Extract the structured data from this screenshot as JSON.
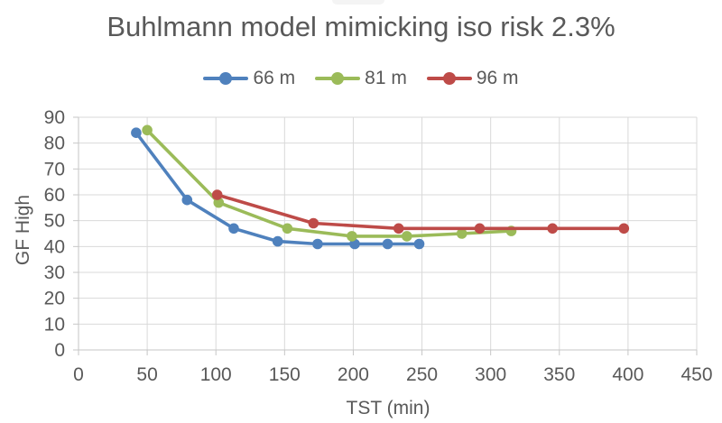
{
  "chart_data": {
    "type": "line",
    "title": "Buhlmann model mimicking iso risk 2.3%",
    "xlabel": "TST (min)",
    "ylabel": "GF High",
    "xlim": [
      0,
      450
    ],
    "ylim": [
      0,
      90
    ],
    "x_ticks": [
      0,
      50,
      100,
      150,
      200,
      250,
      300,
      350,
      400,
      450
    ],
    "y_ticks": [
      0,
      10,
      20,
      30,
      40,
      50,
      60,
      70,
      80,
      90
    ],
    "grid": true,
    "legend_position": "top-center",
    "series": [
      {
        "name": "66 m",
        "color": "#4F81BD",
        "points": [
          [
            42,
            84
          ],
          [
            79,
            58
          ],
          [
            113,
            47
          ],
          [
            145,
            42
          ],
          [
            174,
            41
          ],
          [
            201,
            41
          ],
          [
            225,
            41
          ],
          [
            248,
            41
          ]
        ]
      },
      {
        "name": "81 m",
        "color": "#9BBB59",
        "points": [
          [
            50,
            85
          ],
          [
            102,
            57
          ],
          [
            152,
            47
          ],
          [
            199,
            44
          ],
          [
            239,
            44
          ],
          [
            279,
            45
          ],
          [
            315,
            46
          ]
        ]
      },
      {
        "name": "96 m",
        "color": "#BE4B48",
        "points": [
          [
            101,
            60
          ],
          [
            171,
            49
          ],
          [
            233,
            47
          ],
          [
            292,
            47
          ],
          [
            345,
            47
          ],
          [
            397,
            47
          ]
        ]
      }
    ]
  },
  "colors": {
    "grid": "#D9D9D9",
    "axis": "#C6C6C6",
    "text": "#595959",
    "background": "#FFFFFF"
  }
}
